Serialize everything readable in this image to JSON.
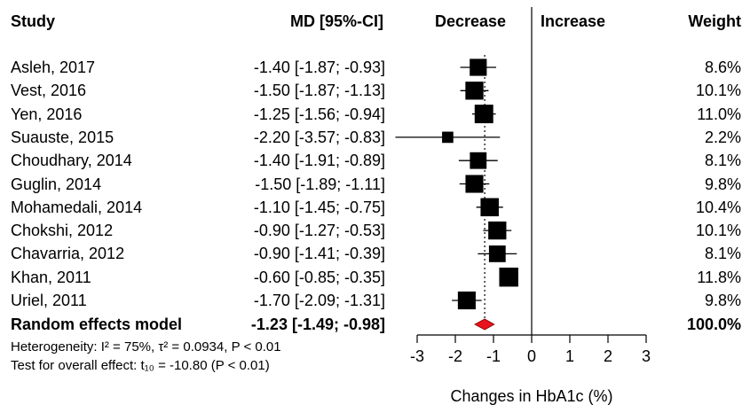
{
  "headers": {
    "study": "Study",
    "md": "MD [95%-CI]",
    "decrease": "Decrease",
    "increase": "Increase",
    "weight": "Weight"
  },
  "chart_data": {
    "type": "forest",
    "xlabel": "Changes in HbA1c (%)",
    "xlim": [
      -3,
      3
    ],
    "ticks": [
      "-3",
      "-2",
      "-1",
      "0",
      "1",
      "2",
      "3"
    ],
    "studies": [
      {
        "name": "Asleh, 2017",
        "ci_text": "-1.40 [-1.87; -0.93]",
        "md": -1.4,
        "lo": -1.87,
        "hi": -0.93,
        "weight_text": "8.6%",
        "weight": 8.6
      },
      {
        "name": "Vest, 2016",
        "ci_text": "-1.50 [-1.87; -1.13]",
        "md": -1.5,
        "lo": -1.87,
        "hi": -1.13,
        "weight_text": "10.1%",
        "weight": 10.1
      },
      {
        "name": "Yen, 2016",
        "ci_text": "-1.25 [-1.56; -0.94]",
        "md": -1.25,
        "lo": -1.56,
        "hi": -0.94,
        "weight_text": "11.0%",
        "weight": 11.0
      },
      {
        "name": "Suauste, 2015",
        "ci_text": "-2.20 [-3.57; -0.83]",
        "md": -2.2,
        "lo": -3.57,
        "hi": -0.83,
        "weight_text": "2.2%",
        "weight": 2.2
      },
      {
        "name": "Choudhary, 2014",
        "ci_text": "-1.40 [-1.91; -0.89]",
        "md": -1.4,
        "lo": -1.91,
        "hi": -0.89,
        "weight_text": "8.1%",
        "weight": 8.1
      },
      {
        "name": "Guglin, 2014",
        "ci_text": "-1.50 [-1.89; -1.11]",
        "md": -1.5,
        "lo": -1.89,
        "hi": -1.11,
        "weight_text": "9.8%",
        "weight": 9.8
      },
      {
        "name": "Mohamedali, 2014",
        "ci_text": "-1.10 [-1.45; -0.75]",
        "md": -1.1,
        "lo": -1.45,
        "hi": -0.75,
        "weight_text": "10.4%",
        "weight": 10.4
      },
      {
        "name": "Chokshi, 2012",
        "ci_text": "-0.90 [-1.27; -0.53]",
        "md": -0.9,
        "lo": -1.27,
        "hi": -0.53,
        "weight_text": "10.1%",
        "weight": 10.1
      },
      {
        "name": "Chavarria, 2012",
        "ci_text": "-0.90 [-1.41; -0.39]",
        "md": -0.9,
        "lo": -1.41,
        "hi": -0.39,
        "weight_text": "8.1%",
        "weight": 8.1
      },
      {
        "name": "Khan, 2011",
        "ci_text": "-0.60 [-0.85; -0.35]",
        "md": -0.6,
        "lo": -0.85,
        "hi": -0.35,
        "weight_text": "11.8%",
        "weight": 11.8
      },
      {
        "name": "Uriel, 2011",
        "ci_text": "-1.70 [-2.09; -1.31]",
        "md": -1.7,
        "lo": -2.09,
        "hi": -1.31,
        "weight_text": "9.8%",
        "weight": 9.8
      }
    ],
    "pooled": {
      "name": "Random effects model",
      "ci_text": "-1.23 [-1.49; -0.98]",
      "md": -1.23,
      "lo": -1.49,
      "hi": -0.98,
      "weight_text": "100.0%",
      "color": "#e8141c"
    },
    "heterogeneity_text": "Heterogeneity: I² = 75%, τ² = 0.0934, P < 0.01",
    "overall_effect_text": "Test for overall effect: t₁₀ = -10.80 (P < 0.01)",
    "marker_color": "#000000"
  }
}
